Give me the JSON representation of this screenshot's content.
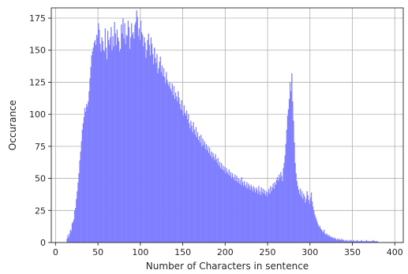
{
  "chart_data": {
    "type": "bar",
    "title": "",
    "xlabel": "Number of Characters in sentence",
    "ylabel": "Occurance",
    "xlim": [
      -5,
      410
    ],
    "ylim": [
      0,
      183
    ],
    "xticks": [
      0,
      50,
      100,
      150,
      200,
      250,
      300,
      350,
      400
    ],
    "yticks": [
      0,
      25,
      50,
      75,
      100,
      125,
      150,
      175
    ],
    "grid": true,
    "bar_color": "#7f7fff",
    "bin_width": 1,
    "series": [
      {
        "x_start": 13,
        "counts": [
          3,
          6,
          4,
          7,
          10,
          9,
          15,
          16,
          18,
          25,
          27,
          34,
          40,
          47,
          54,
          64,
          71,
          79,
          88,
          93,
          98,
          105,
          102,
          108,
          106,
          110,
          118,
          128,
          137,
          146,
          149,
          152,
          156,
          158,
          154,
          162,
          160,
          171,
          166,
          155,
          149,
          160,
          157,
          150,
          149,
          167,
          152,
          143,
          165,
          158,
          154,
          160,
          168,
          150,
          161,
          153,
          172,
          163,
          154,
          166,
          160,
          157,
          149,
          151,
          170,
          163,
          175,
          159,
          171,
          155,
          162,
          161,
          173,
          168,
          151,
          160,
          171,
          162,
          164,
          159,
          170,
          172,
          181,
          176,
          161,
          167,
          158,
          173,
          164,
          162,
          153,
          160,
          156,
          144,
          150,
          158,
          163,
          154,
          146,
          160,
          155,
          147,
          139,
          152,
          144,
          140,
          147,
          132,
          136,
          141,
          145,
          133,
          138,
          130,
          136,
          129,
          124,
          133,
          127,
          124,
          122,
          125,
          120,
          118,
          124,
          115,
          122,
          112,
          117,
          114,
          110,
          118,
          113,
          108,
          104,
          111,
          103,
          99,
          107,
          101,
          99,
          103,
          96,
          100,
          93,
          89,
          95,
          91,
          86,
          94,
          88,
          84,
          90,
          82,
          86,
          80,
          83,
          78,
          84,
          75,
          81,
          76,
          79,
          73,
          77,
          72,
          75,
          70,
          74,
          68,
          71,
          66,
          70,
          67,
          64,
          69,
          65,
          62,
          66,
          60,
          63,
          58,
          62,
          57,
          60,
          56,
          59,
          54,
          58,
          55,
          53,
          57,
          52,
          55,
          50,
          54,
          51,
          49,
          53,
          48,
          52,
          47,
          50,
          46,
          49,
          45,
          51,
          47,
          44,
          48,
          45,
          43,
          47,
          42,
          46,
          44,
          41,
          45,
          43,
          40,
          44,
          42,
          39,
          43,
          41,
          38,
          44,
          40,
          37,
          43,
          39,
          42,
          38,
          41,
          37,
          40,
          36,
          39,
          42,
          38,
          44,
          40,
          43,
          46,
          42,
          47,
          45,
          49,
          51,
          48,
          53,
          50,
          55,
          52,
          48,
          58,
          62,
          68,
          77,
          88,
          99,
          104,
          112,
          125,
          118,
          132,
          110,
          95,
          78,
          62,
          54,
          48,
          44,
          41,
          38,
          42,
          36,
          40,
          34,
          38,
          36,
          31,
          34,
          40,
          37,
          33,
          30,
          35,
          39,
          32,
          28,
          25,
          22,
          20,
          18,
          16,
          14,
          12,
          13,
          11,
          10,
          9,
          8,
          10,
          7,
          6,
          7,
          6,
          5,
          6,
          4,
          5,
          4,
          4,
          3,
          4,
          3,
          3,
          2,
          3,
          2,
          3,
          2,
          2,
          3,
          2,
          2,
          1,
          2,
          1,
          2,
          1,
          1,
          2,
          1,
          2,
          1,
          1,
          2,
          1,
          1,
          1,
          2,
          1,
          1,
          1,
          1,
          2,
          1,
          1,
          1,
          1,
          1,
          2,
          1,
          1,
          1,
          1,
          1,
          1,
          1,
          2,
          1,
          1,
          1,
          1,
          1
        ]
      }
    ]
  }
}
